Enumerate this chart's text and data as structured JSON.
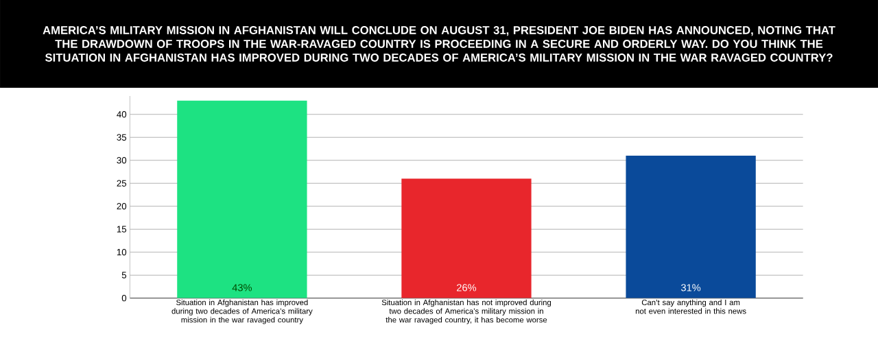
{
  "chart_data": {
    "type": "bar",
    "title": "AMERICA’S MILITARY MISSION IN AFGHANISTAN WILL CONCLUDE ON AUGUST 31, PRESIDENT JOE BIDEN HAS ANNOUNCED, NOTING THAT THE DRAWDOWN OF TROOPS IN THE WAR-RAVAGED COUNTRY IS PROCEEDING IN A SECURE AND ORDERLY WAY. DO YOU THINK THE SITUATION IN AFGHANISTAN HAS IMPROVED DURING TWO DECADES OF AMERICA’S MILITARY MISSION IN THE WAR RAVAGED COUNTRY?",
    "categories": [
      "Situation in Afghanistan has improved during two decades of America’s military mission in the war ravaged country",
      "Situation in Afghanistan has not improved during two decades of America’s military mission in the war ravaged country, it has become worse",
      "Can’t say anything and I am not even interested in this news"
    ],
    "values": [
      43,
      26,
      31
    ],
    "colors": [
      "#1de282",
      "#e8262c",
      "#0a4a9a"
    ],
    "value_labels": [
      "43%",
      "26%",
      "31%"
    ],
    "ylim": [
      0,
      44
    ],
    "yticks": [
      0,
      5,
      10,
      15,
      20,
      25,
      30,
      35,
      40
    ],
    "grid": "y"
  }
}
